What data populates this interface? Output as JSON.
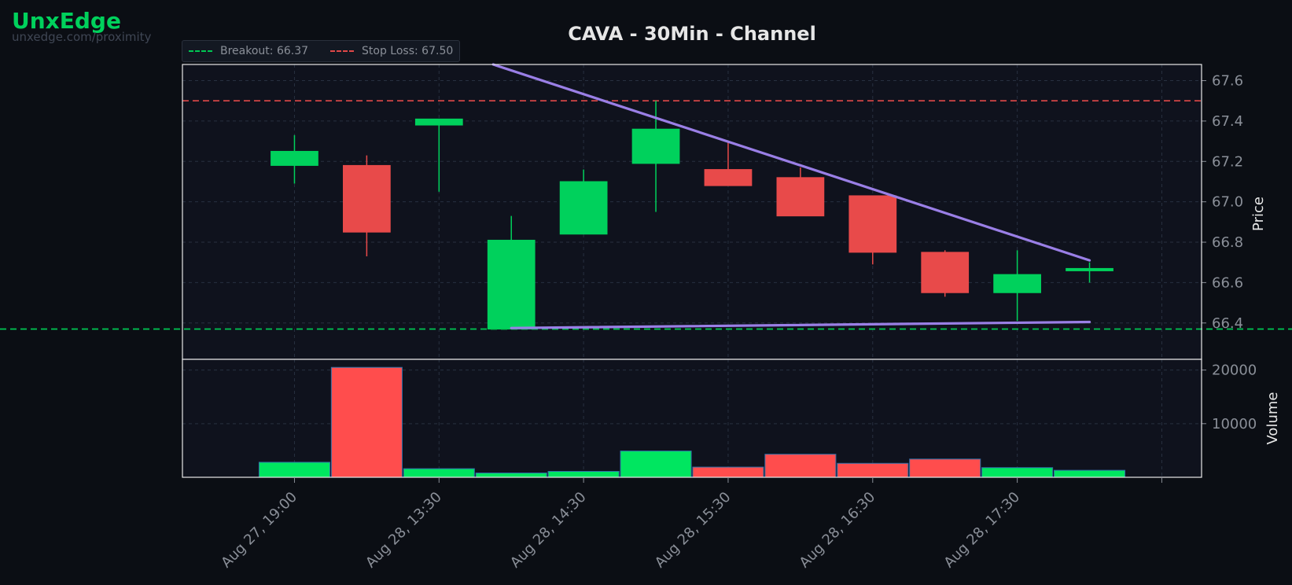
{
  "brand": {
    "name": "UnxEdge",
    "url": "unxedge.com/proximity",
    "color": "#00d15c"
  },
  "title": "CAVA - 30Min - Channel",
  "legend": [
    {
      "label": "Breakout: 66.37",
      "color": "#00c853"
    },
    {
      "label": "Stop Loss: 67.50",
      "color": "#e04848"
    }
  ],
  "chart_data": {
    "type": "candlestick",
    "ylabel": "Price",
    "volume_label": "Volume",
    "ylim": [
      66.22,
      67.68
    ],
    "volume_ylim": [
      0,
      22000
    ],
    "price_ticks": [
      66.4,
      66.6,
      66.8,
      67.0,
      67.2,
      67.4,
      67.6
    ],
    "volume_ticks": [
      10000,
      20000
    ],
    "x_tick_labels": [
      "Aug 27, 19:00",
      "Aug 28, 13:30",
      "Aug 28, 14:30",
      "Aug 28, 15:30",
      "Aug 28, 16:30",
      "Aug 28, 17:30"
    ],
    "x_tick_positions": [
      0,
      2,
      4,
      6,
      8,
      10
    ],
    "xlim": [
      -1.55,
      12.55
    ],
    "extra_grid_x": [
      12
    ],
    "candles": [
      {
        "open": 67.18,
        "high": 67.33,
        "low": 67.09,
        "close": 67.25,
        "volume": 2800
      },
      {
        "open": 67.18,
        "high": 67.23,
        "low": 66.73,
        "close": 66.85,
        "volume": 20500
      },
      {
        "open": 67.38,
        "high": 67.41,
        "low": 67.05,
        "close": 67.41,
        "volume": 1600
      },
      {
        "open": 66.37,
        "high": 66.93,
        "low": 66.37,
        "close": 66.81,
        "volume": 800
      },
      {
        "open": 66.84,
        "high": 67.16,
        "low": 66.84,
        "close": 67.1,
        "volume": 1100
      },
      {
        "open": 67.19,
        "high": 67.5,
        "low": 66.95,
        "close": 67.36,
        "volume": 4900
      },
      {
        "open": 67.16,
        "high": 67.3,
        "low": 67.08,
        "close": 67.08,
        "volume": 1900
      },
      {
        "open": 67.12,
        "high": 67.17,
        "low": 66.93,
        "close": 66.93,
        "volume": 4300
      },
      {
        "open": 67.03,
        "high": 67.03,
        "low": 66.69,
        "close": 66.75,
        "volume": 2600
      },
      {
        "open": 66.75,
        "high": 66.76,
        "low": 66.53,
        "close": 66.55,
        "volume": 3400
      },
      {
        "open": 66.55,
        "high": 66.76,
        "low": 66.41,
        "close": 66.64,
        "volume": 1800
      },
      {
        "open": 66.66,
        "high": 66.7,
        "low": 66.6,
        "close": 66.67,
        "volume": 1300
      }
    ],
    "breakout_level": 66.37,
    "stop_loss_level": 67.5,
    "channel_upper": [
      {
        "x": 2.75,
        "y": 67.68
      },
      {
        "x": 11.0,
        "y": 66.71
      }
    ],
    "channel_lower": [
      {
        "x": 3.0,
        "y": 66.375
      },
      {
        "x": 11.0,
        "y": 66.405
      }
    ],
    "colors": {
      "up": "#00d15c",
      "down": "#e84a4a",
      "volume_up": "#00e660",
      "volume_down": "#ff4d4d",
      "volume_edge": "#2f6fa8",
      "channel": "#9a7fe6",
      "breakout": "#00c853",
      "stop_loss": "#e04848",
      "panel_bg": "#0f121d",
      "page_bg": "#0b0e14",
      "grid": "#283040",
      "axis_text": "#8a8f98",
      "label_text": "#e6e6e6"
    }
  }
}
